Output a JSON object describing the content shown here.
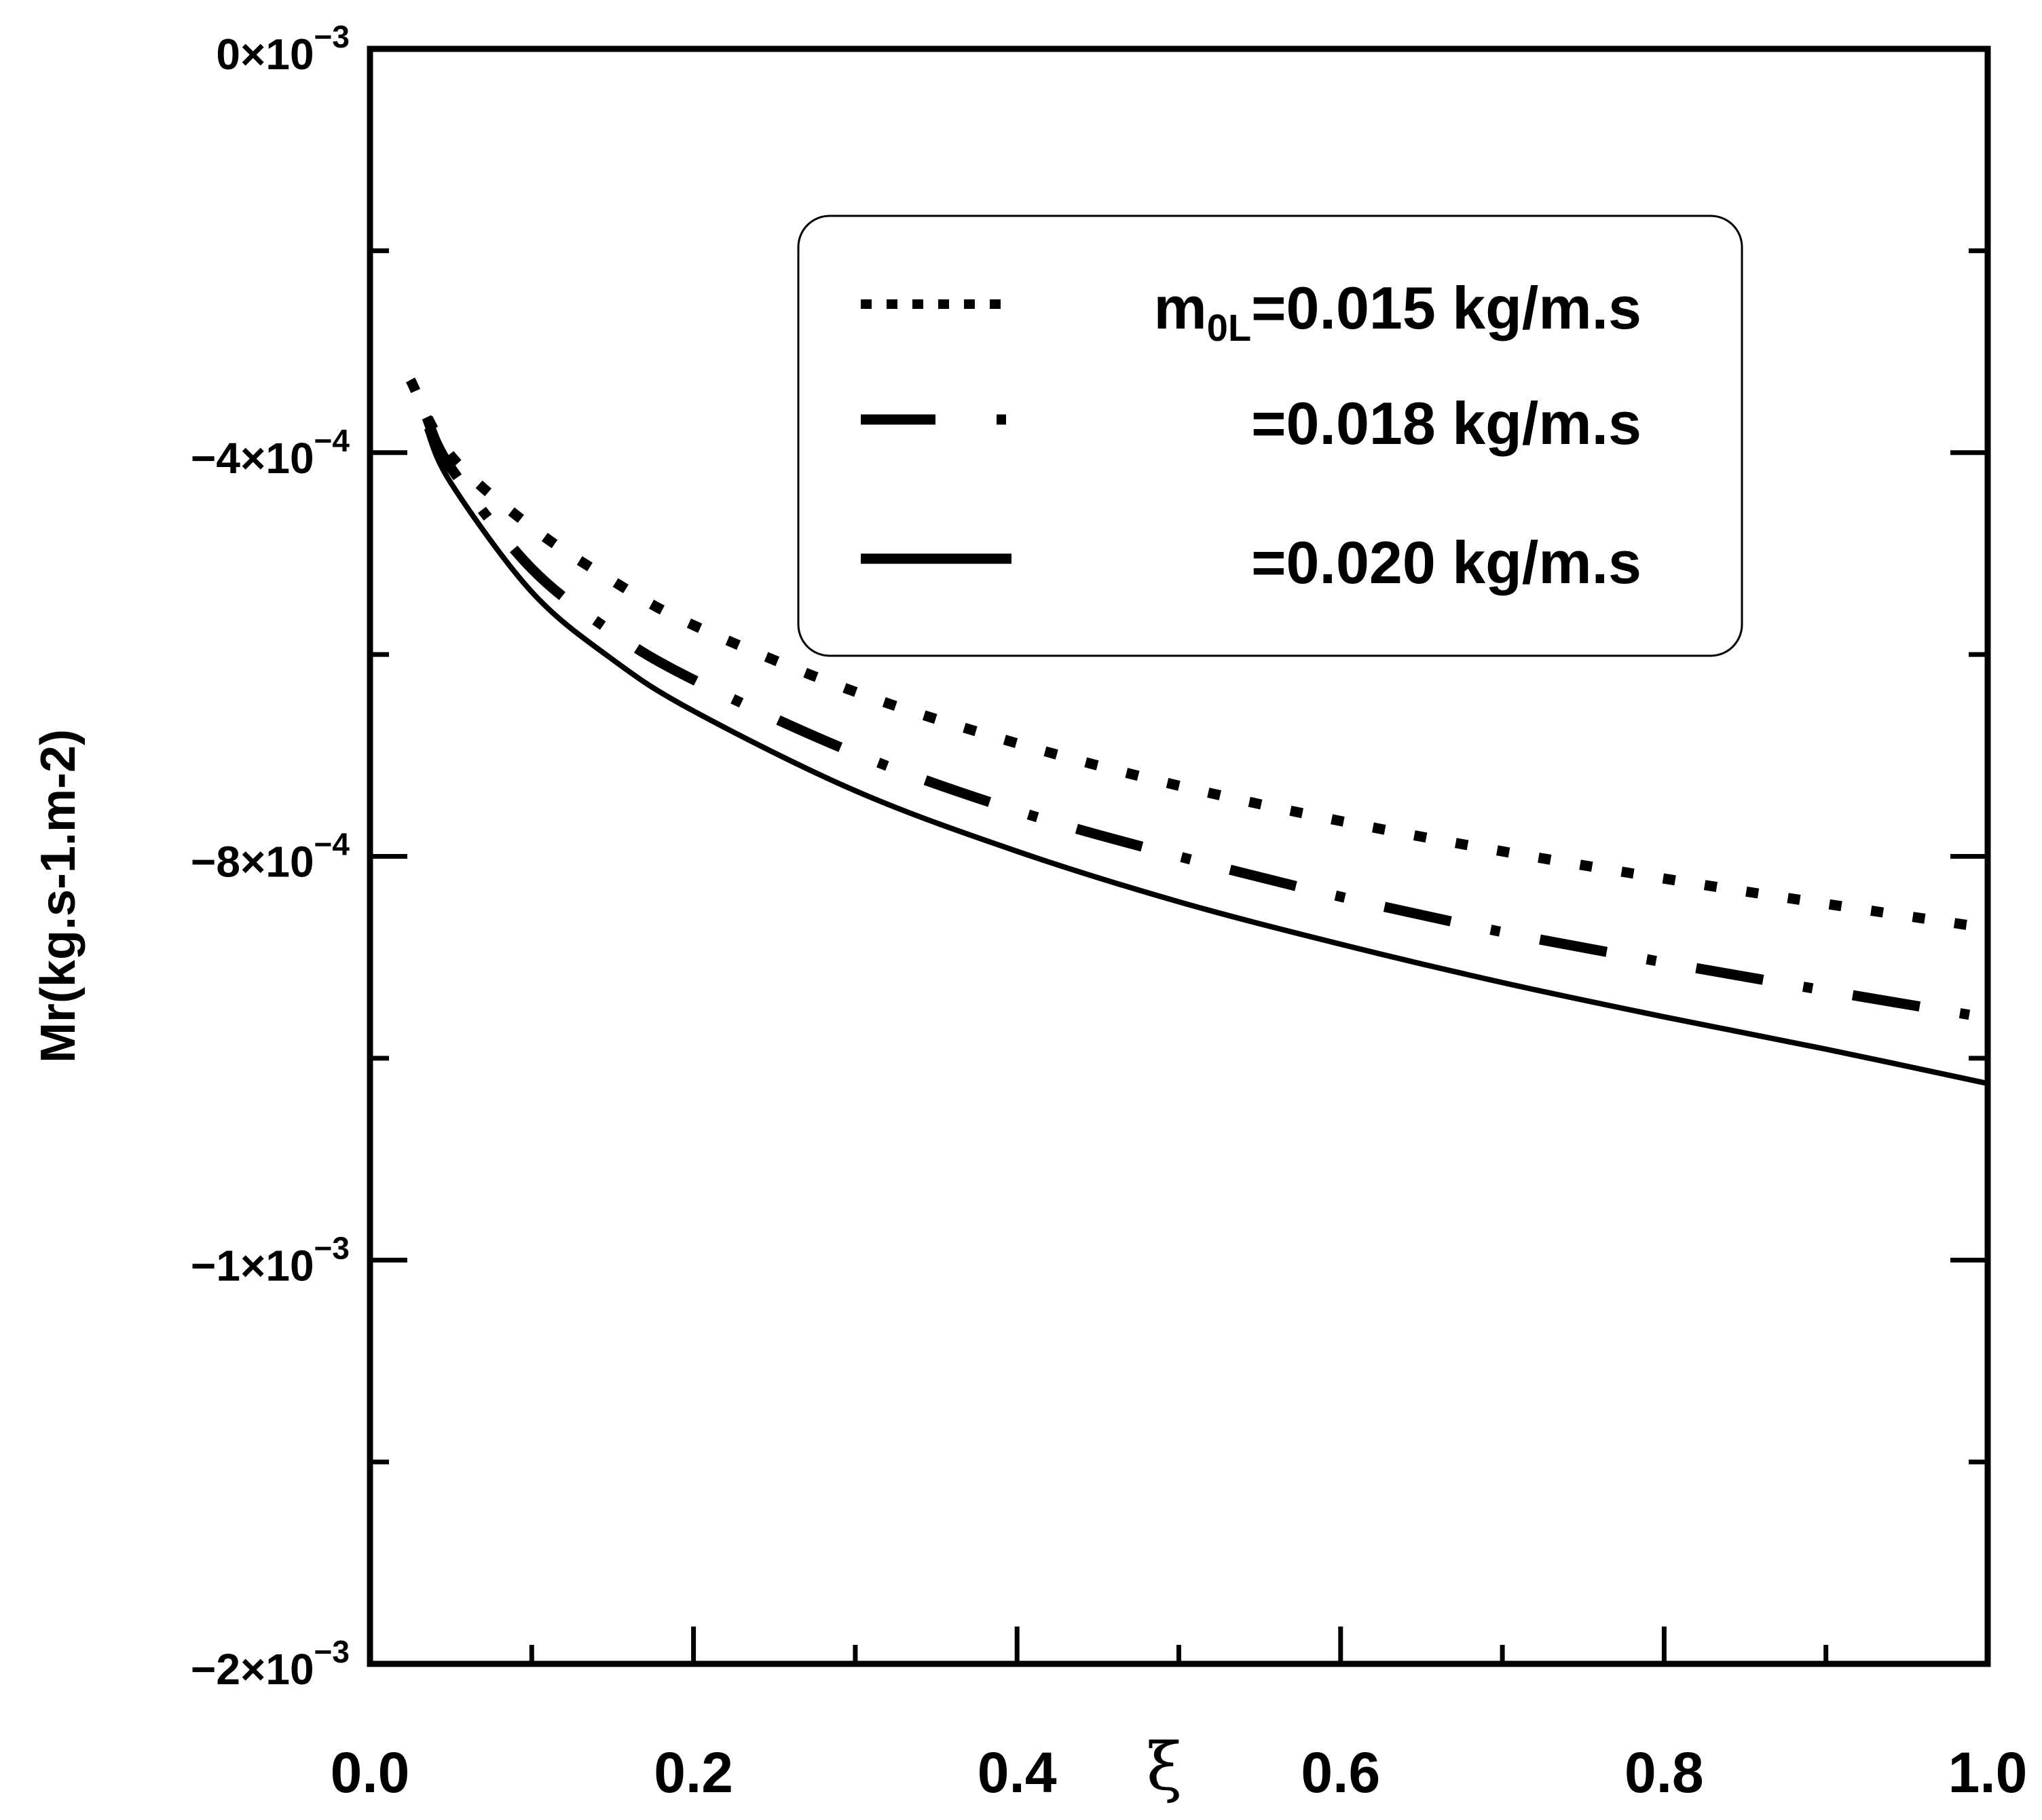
{
  "chart_data": {
    "type": "line",
    "title": "",
    "xlabel": "ξ",
    "ylabel": "Mr(kg.s-1.m-2)",
    "xlim": [
      0.0,
      1.0
    ],
    "ylim": [
      -0.0016,
      0.0
    ],
    "x_ticks": [
      {
        "value": 0.0,
        "label": "0.0"
      },
      {
        "value": 0.2,
        "label": "0.2"
      },
      {
        "value": 0.4,
        "label": "0.4"
      },
      {
        "value": 0.6,
        "label": "0.6"
      },
      {
        "value": 0.8,
        "label": "0.8"
      },
      {
        "value": 1.0,
        "label": "1.0"
      }
    ],
    "y_ticks": [
      {
        "value": 0.0,
        "mantissa": "0×10",
        "exponent": "−3"
      },
      {
        "value": -0.0004,
        "mantissa": "−4×10",
        "exponent": "−4"
      },
      {
        "value": -0.0008,
        "mantissa": "−8×10",
        "exponent": "−4"
      },
      {
        "value": -0.0012,
        "mantissa": "−1×10",
        "exponent": "−3"
      },
      {
        "value": -0.0016,
        "mantissa": "−2×10",
        "exponent": "−3"
      }
    ],
    "grid": false,
    "legend_position": "top-right",
    "legend_prefix": "m",
    "legend_subscript": "0L",
    "series": [
      {
        "name": "=0.015 kg/m.s",
        "style": "dotted",
        "x": [
          0.025,
          0.05,
          0.1,
          0.15,
          0.2,
          0.3,
          0.4,
          0.5,
          0.6,
          0.7,
          0.8,
          0.9,
          1.0
        ],
        "y": [
          -0.000328,
          -0.000403,
          -0.000474,
          -0.000527,
          -0.000571,
          -0.000637,
          -0.000688,
          -0.00073,
          -0.000765,
          -0.000795,
          -0.000822,
          -0.000847,
          -0.000871
        ]
      },
      {
        "name": "=0.018 kg/m.s",
        "style": "dashdot",
        "x": [
          0.035,
          0.05,
          0.1,
          0.15,
          0.2,
          0.3,
          0.4,
          0.5,
          0.6,
          0.7,
          0.8,
          0.9,
          1.0
        ],
        "y": [
          -0.000365,
          -0.000415,
          -0.000515,
          -0.000578,
          -0.000625,
          -0.000698,
          -0.000755,
          -0.0008,
          -0.00084,
          -0.000875,
          -0.000905,
          -0.000933,
          -0.00096
        ]
      },
      {
        "name": "=0.020 kg/m.s",
        "style": "solid",
        "x": [
          0.035,
          0.05,
          0.1,
          0.15,
          0.2,
          0.3,
          0.4,
          0.5,
          0.6,
          0.7,
          0.8,
          0.9,
          1.0
        ],
        "y": [
          -0.000376,
          -0.00043,
          -0.000538,
          -0.000605,
          -0.000656,
          -0.000735,
          -0.000795,
          -0.000845,
          -0.000887,
          -0.000925,
          -0.000959,
          -0.000991,
          -0.001025
        ]
      }
    ]
  }
}
